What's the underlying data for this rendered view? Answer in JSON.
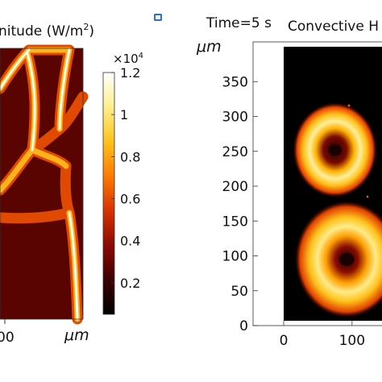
{
  "left_panel": {
    "title_text": "nitude (W/m",
    "title_sup": "2",
    "title_close": ")",
    "x_tick": "00",
    "x_unit": "μm",
    "colorbar": {
      "exponent_label": "×10",
      "exponent_sup": "4",
      "ticks": [
        "1.2",
        "1",
        "0.8",
        "0.6",
        "0.4",
        "0.2"
      ],
      "tick_values": [
        1.2,
        1.0,
        0.8,
        0.6,
        0.4,
        0.2
      ],
      "range": [
        0.05,
        1.2
      ],
      "colormap": [
        "#000000",
        "#3c0000",
        "#8c0a00",
        "#d83200",
        "#ff7a00",
        "#ffc21a",
        "#ffef8a",
        "#ffffff"
      ]
    }
  },
  "right_panel": {
    "time_label": "Time=5 s",
    "title_text": "Convective H",
    "y_unit": "μm",
    "y_ticks": [
      "350",
      "300",
      "250",
      "200",
      "150",
      "100",
      "50",
      "0"
    ],
    "x_ticks": [
      "0",
      "100"
    ]
  },
  "chart_data": [
    {
      "type": "heatmap",
      "title": "nitude (W/m2)",
      "xlabel": "μm",
      "colorbar_label": "×10^4",
      "colorbar_range": [
        0.05,
        1.2
      ],
      "colorbar_ticks": [
        0.2,
        0.4,
        0.6,
        0.8,
        1.0,
        1.2
      ],
      "colormap": "heat (black-red-yellow-white)"
    },
    {
      "type": "heatmap",
      "title": "Convective H",
      "subtitle": "Time=5 s",
      "ylabel": "μm",
      "xlim": [
        0,
        165
      ],
      "ylim": [
        0,
        400
      ],
      "x_ticks": [
        0,
        100
      ],
      "y_ticks": [
        0,
        50,
        100,
        150,
        200,
        250,
        300,
        350
      ],
      "hotspots": [
        {
          "center_x": 75,
          "center_y": 252,
          "outer_radius": 65,
          "inner_radius": 28
        },
        {
          "center_x": 92,
          "center_y": 95,
          "outer_radius": 80,
          "inner_radius": 32
        }
      ],
      "colormap": "heat (black-red-yellow-white)"
    }
  ]
}
